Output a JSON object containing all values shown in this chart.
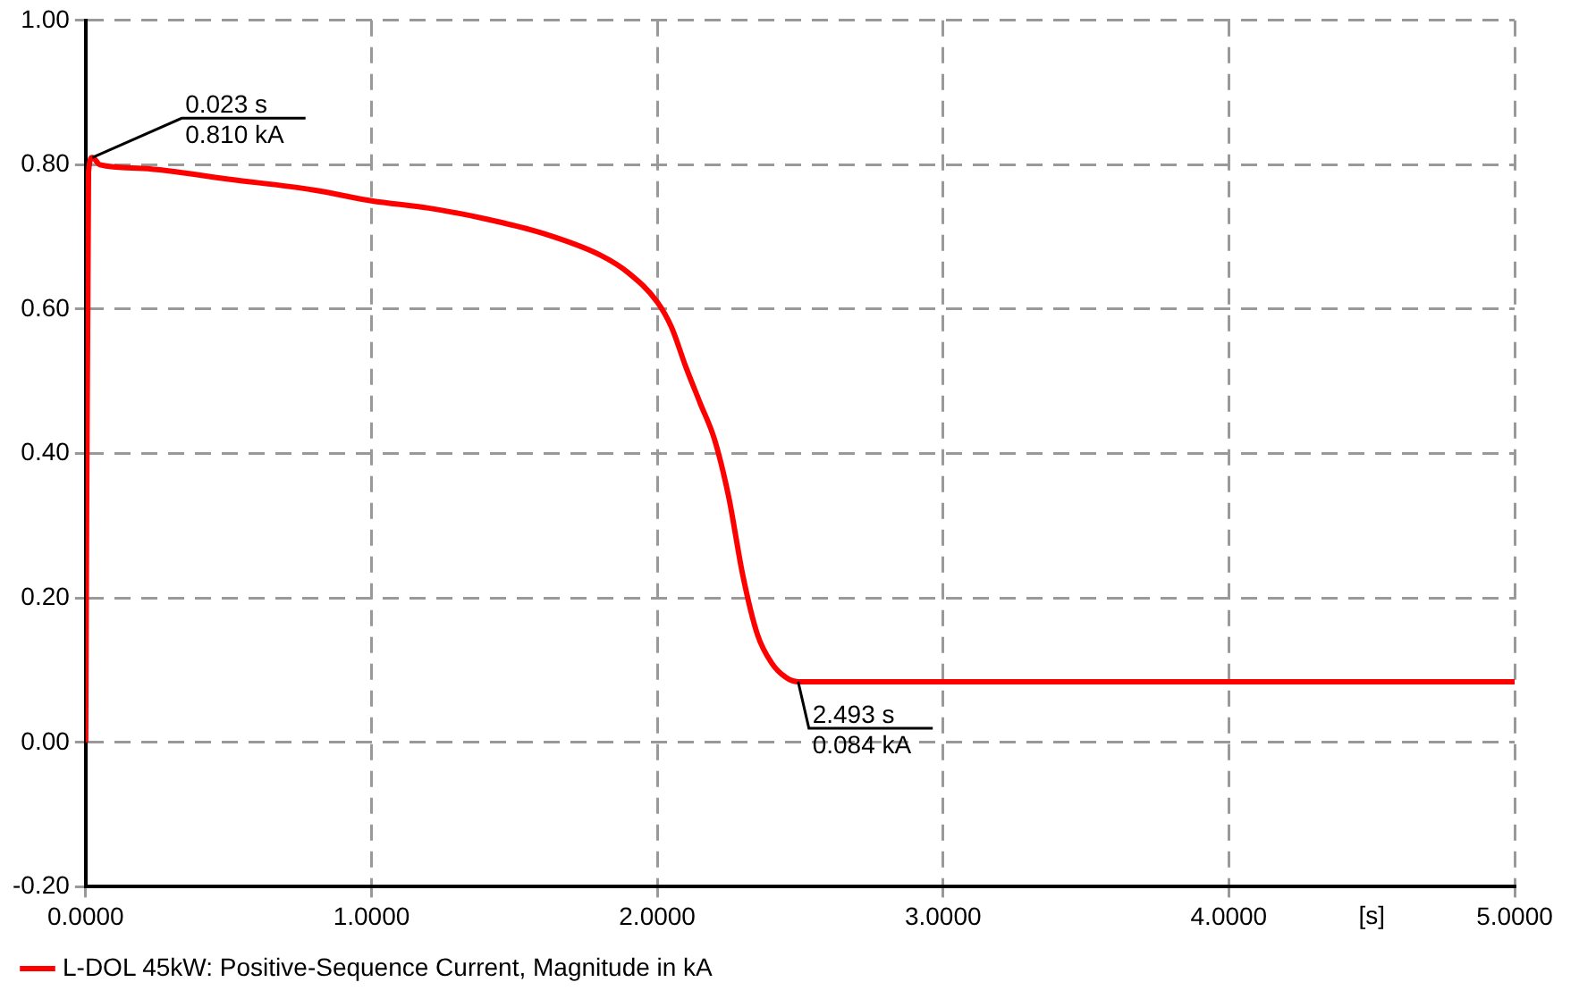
{
  "chart_data": {
    "type": "line",
    "xlabel": "[s]",
    "x": [
      0,
      0.01,
      0.023,
      0.05,
      0.2,
      0.5,
      0.8,
      1.0,
      1.2,
      1.4,
      1.6,
      1.8,
      1.9,
      2.0,
      2.05,
      2.1,
      2.15,
      2.2,
      2.25,
      2.3,
      2.35,
      2.4,
      2.45,
      2.493,
      3,
      4,
      5
    ],
    "series": [
      {
        "name": "L-DOL 45kW: Positive-Sequence Current, Magnitude in kA",
        "color": "#ff0000",
        "values": [
          0,
          0.79,
          0.81,
          0.8,
          0.795,
          0.78,
          0.765,
          0.75,
          0.74,
          0.725,
          0.705,
          0.675,
          0.65,
          0.61,
          0.575,
          0.52,
          0.47,
          0.42,
          0.34,
          0.23,
          0.15,
          0.11,
          0.09,
          0.084,
          0.084,
          0.084,
          0.084
        ]
      }
    ],
    "xlim": [
      0,
      5
    ],
    "xticks": [
      {
        "value": 0,
        "label": "0.0000"
      },
      {
        "value": 1,
        "label": "1.0000"
      },
      {
        "value": 2,
        "label": "2.0000"
      },
      {
        "value": 3,
        "label": "3.0000"
      },
      {
        "value": 4,
        "label": "4.0000"
      },
      {
        "value": 5,
        "label": "5.0000"
      }
    ],
    "ylim": [
      -0.2,
      1.0
    ],
    "yticks": [
      {
        "value": -0.2,
        "label": "-0.20"
      },
      {
        "value": 0,
        "label": "0.00"
      },
      {
        "value": 0.2,
        "label": "0.20"
      },
      {
        "value": 0.4,
        "label": "0.40"
      },
      {
        "value": 0.6,
        "label": "0.60"
      },
      {
        "value": 0.8,
        "label": "0.80"
      },
      {
        "value": 1.0,
        "label": "1.00"
      }
    ],
    "annotations": [
      {
        "text": "0.023 s\n0.810 kA",
        "x": 0.023,
        "y": 0.81
      },
      {
        "text": "2.493 s\n0.084 kA",
        "x": 2.493,
        "y": 0.084
      }
    ],
    "grid": true,
    "legend": "bottom",
    "marker": "none",
    "line_style": "solid"
  }
}
